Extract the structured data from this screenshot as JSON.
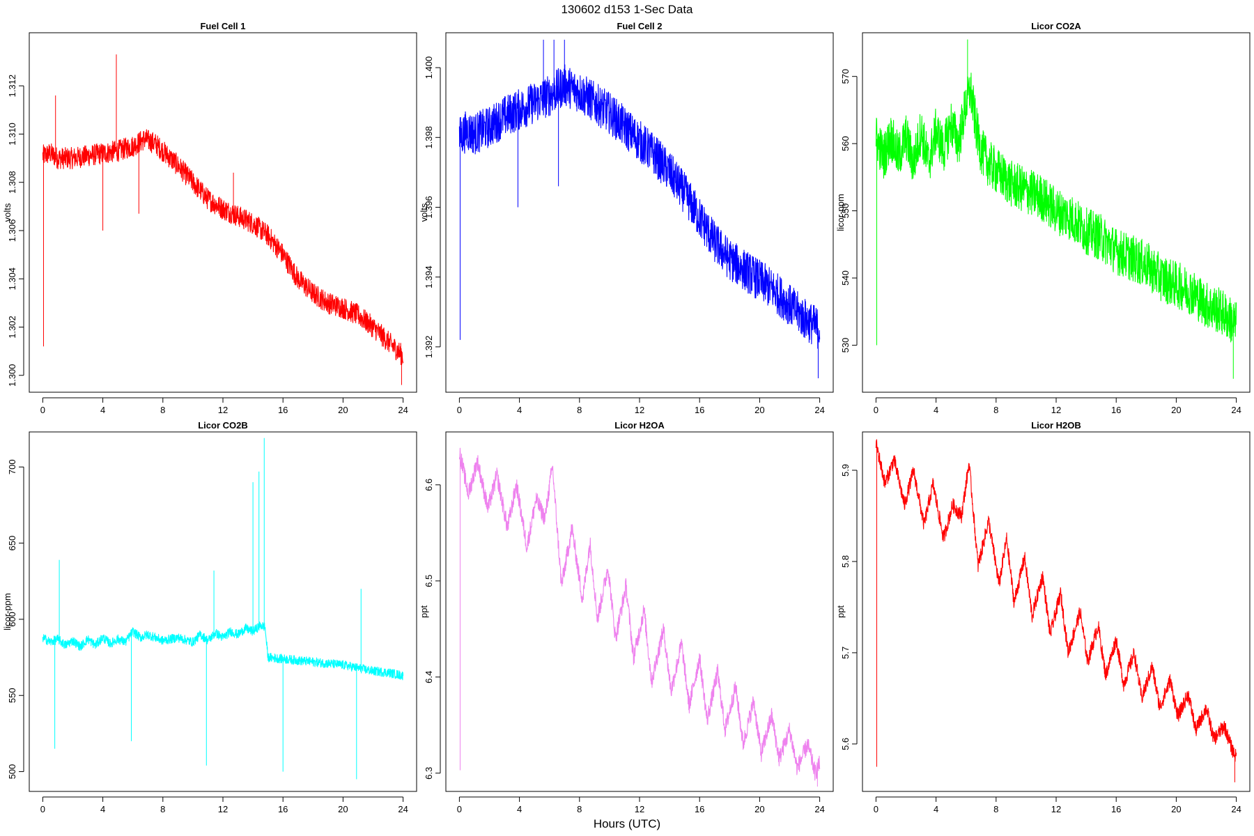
{
  "figure": {
    "title": "130602   d153   1-Sec Data",
    "xlabel": "Hours (UTC)"
  },
  "chart_data": [
    {
      "type": "line",
      "title": "Fuel Cell 1",
      "ylabel": "volts",
      "color": "#ff0000",
      "xlim": [
        -0.9,
        24.9
      ],
      "ylim": [
        1.2993,
        1.3142
      ],
      "x_ticks": [
        0,
        4,
        8,
        12,
        16,
        20,
        24
      ],
      "y_ticks": [
        1.3,
        1.302,
        1.304,
        1.306,
        1.308,
        1.31,
        1.312
      ],
      "y_tick_labels": [
        "1.300",
        "1.302",
        "1.304",
        "1.306",
        "1.308",
        "1.310",
        "1.312"
      ],
      "noise": 0.00045,
      "series": [
        {
          "x": [
            0,
            0.5,
            1,
            2,
            3,
            4,
            5,
            6,
            6.8,
            7.5,
            8,
            9,
            10,
            11,
            12,
            13,
            14,
            15,
            16,
            17,
            18,
            19,
            20,
            21,
            22,
            23,
            24
          ],
          "y": [
            1.3091,
            1.3092,
            1.309,
            1.309,
            1.3091,
            1.3092,
            1.3093,
            1.3095,
            1.3098,
            1.3096,
            1.3093,
            1.3087,
            1.308,
            1.3073,
            1.3069,
            1.3066,
            1.3063,
            1.3058,
            1.305,
            1.304,
            1.3034,
            1.303,
            1.3028,
            1.3025,
            1.302,
            1.3014,
            1.3008
          ]
        }
      ],
      "spikes": [
        {
          "x": 0.05,
          "y": 1.3012
        },
        {
          "x": 0.85,
          "y": 1.3116
        },
        {
          "x": 4.0,
          "y": 1.306
        },
        {
          "x": 4.9,
          "y": 1.3133
        },
        {
          "x": 6.4,
          "y": 1.3067
        },
        {
          "x": 12.7,
          "y": 1.3084
        },
        {
          "x": 23.9,
          "y": 1.2996
        }
      ]
    },
    {
      "type": "line",
      "title": "Fuel Cell 2",
      "ylabel": "volts",
      "color": "#0000ff",
      "xlim": [
        -0.9,
        24.9
      ],
      "ylim": [
        1.3907,
        1.401
      ],
      "x_ticks": [
        0,
        4,
        8,
        12,
        16,
        20,
        24
      ],
      "y_ticks": [
        1.392,
        1.394,
        1.396,
        1.398,
        1.4
      ],
      "y_tick_labels": [
        "1.392",
        "1.394",
        "1.396",
        "1.398",
        "1.400"
      ],
      "noise": 0.0006,
      "series": [
        {
          "x": [
            0,
            0.5,
            1,
            2,
            3,
            4,
            5,
            6,
            7,
            8,
            9,
            10,
            11,
            12,
            13,
            14,
            15,
            16,
            17,
            18,
            19,
            20,
            21,
            22,
            23,
            24
          ],
          "y": [
            1.398,
            1.3982,
            1.3981,
            1.3983,
            1.3986,
            1.3988,
            1.399,
            1.3992,
            1.3995,
            1.3993,
            1.399,
            1.3987,
            1.3983,
            1.3979,
            1.3975,
            1.397,
            1.3964,
            1.3957,
            1.395,
            1.3945,
            1.3942,
            1.3939,
            1.3936,
            1.3932,
            1.3928,
            1.3925
          ]
        }
      ],
      "spikes": [
        {
          "x": 0.05,
          "y": 1.3922
        },
        {
          "x": 3.9,
          "y": 1.396
        },
        {
          "x": 5.6,
          "y": 1.4008
        },
        {
          "x": 6.3,
          "y": 1.4008
        },
        {
          "x": 6.6,
          "y": 1.3966
        },
        {
          "x": 7.0,
          "y": 1.4008
        },
        {
          "x": 23.9,
          "y": 1.3911
        }
      ]
    },
    {
      "type": "line",
      "title": "Licor CO2A",
      "ylabel": "licor-ppm",
      "color": "#00ff00",
      "xlim": [
        -0.9,
        24.9
      ],
      "ylim": [
        523.0,
        576.5
      ],
      "x_ticks": [
        0,
        4,
        8,
        12,
        16,
        20,
        24
      ],
      "y_ticks": [
        530,
        540,
        550,
        560,
        570
      ],
      "y_tick_labels": [
        "530",
        "540",
        "550",
        "560",
        "570"
      ],
      "noise": 3.5,
      "series": [
        {
          "x": [
            0,
            0.5,
            1,
            1.5,
            2,
            2.5,
            3,
            3.5,
            4,
            4.5,
            5,
            5.5,
            6,
            6.3,
            6.7,
            7,
            7.5,
            8,
            9,
            10,
            11,
            12,
            13,
            14,
            15,
            16,
            17,
            18,
            19,
            20,
            21,
            22,
            23,
            24
          ],
          "y": [
            561,
            558,
            561,
            558,
            561,
            557,
            562,
            557,
            562,
            559,
            563,
            560,
            566,
            568,
            562,
            559,
            557,
            556,
            554,
            553,
            552,
            550,
            549,
            547,
            546,
            544,
            543,
            542,
            540,
            539,
            538,
            536,
            535,
            533
          ]
        }
      ],
      "spikes": [
        {
          "x": 0.05,
          "y": 530
        },
        {
          "x": 6.1,
          "y": 575.5
        },
        {
          "x": 23.8,
          "y": 525
        }
      ]
    },
    {
      "type": "line",
      "title": "Licor CO2B",
      "ylabel": "licor-ppm",
      "color": "#00ffff",
      "xlim": [
        -0.9,
        24.9
      ],
      "ylim": [
        487,
        723
      ],
      "x_ticks": [
        0,
        4,
        8,
        12,
        16,
        20,
        24
      ],
      "y_ticks": [
        500,
        550,
        600,
        650,
        700
      ],
      "y_tick_labels": [
        "500",
        "550",
        "600",
        "650",
        "700"
      ],
      "noise": 3,
      "series": [
        {
          "x": [
            0,
            0.5,
            1,
            1.5,
            2,
            2.5,
            3,
            3.5,
            4,
            4.5,
            5,
            5.5,
            6,
            6.5,
            7,
            8,
            9,
            10,
            10.5,
            11,
            11.5,
            12,
            12.5,
            13,
            13.5,
            14,
            14.5,
            14.8,
            15,
            16,
            17,
            18,
            19,
            20,
            21,
            22,
            23,
            24
          ],
          "y": [
            588,
            585,
            587,
            583,
            586,
            582,
            587,
            583,
            588,
            584,
            587,
            585,
            592,
            588,
            590,
            586,
            588,
            585,
            590,
            586,
            591,
            588,
            592,
            590,
            594,
            592,
            596,
            595,
            575,
            574,
            573,
            572,
            571,
            570,
            568,
            566,
            565,
            563
          ]
        }
      ],
      "spikes": [
        {
          "x": 0.8,
          "y": 515
        },
        {
          "x": 1.1,
          "y": 639
        },
        {
          "x": 5.9,
          "y": 520
        },
        {
          "x": 10.9,
          "y": 504
        },
        {
          "x": 11.4,
          "y": 632
        },
        {
          "x": 14.0,
          "y": 690
        },
        {
          "x": 14.4,
          "y": 697
        },
        {
          "x": 14.75,
          "y": 719
        },
        {
          "x": 16.0,
          "y": 500
        },
        {
          "x": 20.9,
          "y": 495
        },
        {
          "x": 21.2,
          "y": 620
        }
      ]
    },
    {
      "type": "line",
      "title": "Licor H2OA",
      "ylabel": "ppt",
      "color": "#ee82ee",
      "xlim": [
        -0.9,
        24.9
      ],
      "ylim": [
        6.281,
        6.655
      ],
      "x_ticks": [
        0,
        4,
        8,
        12,
        16,
        20,
        24
      ],
      "y_ticks": [
        6.3,
        6.4,
        6.5,
        6.6
      ],
      "y_tick_labels": [
        "6.3",
        "6.4",
        "6.5",
        "6.6"
      ],
      "noise": 0.009,
      "series": [
        {
          "x": [
            0,
            0.6,
            1.2,
            1.9,
            2.5,
            3.2,
            3.8,
            4.5,
            5.1,
            5.7,
            6.2,
            6.8,
            7.5,
            8.2,
            8.7,
            9.2,
            9.9,
            10.4,
            11.1,
            11.6,
            12.3,
            12.8,
            13.6,
            14.1,
            14.8,
            15.3,
            16.0,
            16.5,
            17.2,
            17.7,
            18.4,
            18.9,
            19.6,
            20.1,
            20.8,
            21.3,
            22.0,
            22.5,
            23.2,
            23.7,
            24.0
          ],
          "y": [
            6.635,
            6.59,
            6.625,
            6.575,
            6.61,
            6.555,
            6.6,
            6.535,
            6.585,
            6.565,
            6.62,
            6.495,
            6.555,
            6.48,
            6.54,
            6.46,
            6.515,
            6.44,
            6.495,
            6.42,
            6.47,
            6.395,
            6.45,
            6.385,
            6.435,
            6.37,
            6.42,
            6.355,
            6.405,
            6.345,
            6.39,
            6.33,
            6.375,
            6.32,
            6.36,
            6.315,
            6.345,
            6.305,
            6.33,
            6.3,
            6.31
          ]
        }
      ],
      "spikes": [
        {
          "x": 0.05,
          "y": 6.303
        },
        {
          "x": 23.85,
          "y": 6.286
        }
      ]
    },
    {
      "type": "line",
      "title": "Licor H2OB",
      "ylabel": "ppt",
      "color": "#ff0000",
      "xlim": [
        -0.9,
        24.9
      ],
      "ylim": [
        5.548,
        5.942
      ],
      "x_ticks": [
        0,
        4,
        8,
        12,
        16,
        20,
        24
      ],
      "y_ticks": [
        5.6,
        5.7,
        5.8,
        5.9
      ],
      "y_tick_labels": [
        "5.6",
        "5.7",
        "5.8",
        "5.9"
      ],
      "noise": 0.008,
      "series": [
        {
          "x": [
            0,
            0.6,
            1.2,
            1.9,
            2.5,
            3.2,
            3.8,
            4.5,
            5.1,
            5.7,
            6.2,
            6.8,
            7.5,
            8.2,
            8.7,
            9.2,
            9.9,
            10.4,
            11.1,
            11.6,
            12.3,
            12.8,
            13.6,
            14.1,
            14.8,
            15.3,
            16.0,
            16.5,
            17.2,
            17.7,
            18.4,
            18.9,
            19.6,
            20.1,
            20.8,
            21.3,
            22.0,
            22.5,
            23.2,
            23.7,
            24.0
          ],
          "y": [
            5.93,
            5.885,
            5.912,
            5.862,
            5.9,
            5.84,
            5.885,
            5.825,
            5.862,
            5.85,
            5.908,
            5.795,
            5.845,
            5.775,
            5.825,
            5.755,
            5.805,
            5.74,
            5.785,
            5.72,
            5.765,
            5.7,
            5.745,
            5.69,
            5.73,
            5.675,
            5.715,
            5.665,
            5.7,
            5.65,
            5.685,
            5.64,
            5.67,
            5.63,
            5.655,
            5.615,
            5.64,
            5.605,
            5.62,
            5.595,
            5.585
          ]
        }
      ],
      "spikes": [
        {
          "x": 0.05,
          "y": 5.575
        },
        {
          "x": 23.9,
          "y": 5.558
        }
      ]
    }
  ]
}
